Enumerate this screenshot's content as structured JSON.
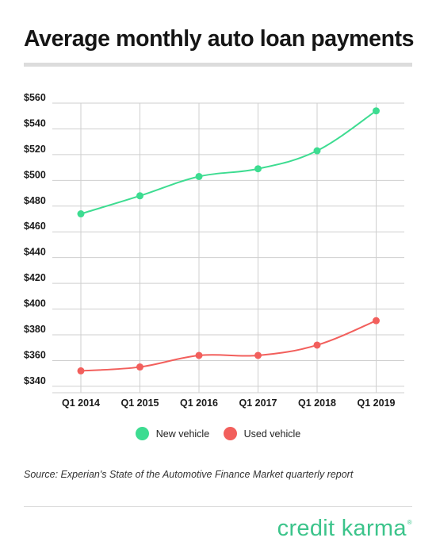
{
  "title": "Average monthly auto loan payments",
  "source": "Source: Experian's State of the Automotive Finance Market quarterly report",
  "brand": {
    "name": "credit karma",
    "mark": "®",
    "color": "#3cc48b"
  },
  "chart_data": {
    "type": "line",
    "title": "Average monthly auto loan payments",
    "xlabel": "",
    "ylabel": "",
    "categories": [
      "Q1 2014",
      "Q1 2015",
      "Q1 2016",
      "Q1 2017",
      "Q1 2018",
      "Q1 2019"
    ],
    "y_ticks": [
      "$340",
      "$360",
      "$380",
      "$400",
      "$420",
      "$440",
      "$460",
      "$480",
      "$500",
      "$520",
      "$540",
      "$560"
    ],
    "ylim": [
      335,
      560
    ],
    "grid": true,
    "legend_position": "bottom",
    "series": [
      {
        "name": "New vehicle",
        "color": "#3ddc91",
        "values": [
          474,
          488,
          503,
          509,
          523,
          554
        ]
      },
      {
        "name": "Used vehicle",
        "color": "#f25f5c",
        "values": [
          352,
          355,
          364,
          364,
          372,
          391
        ]
      }
    ]
  }
}
